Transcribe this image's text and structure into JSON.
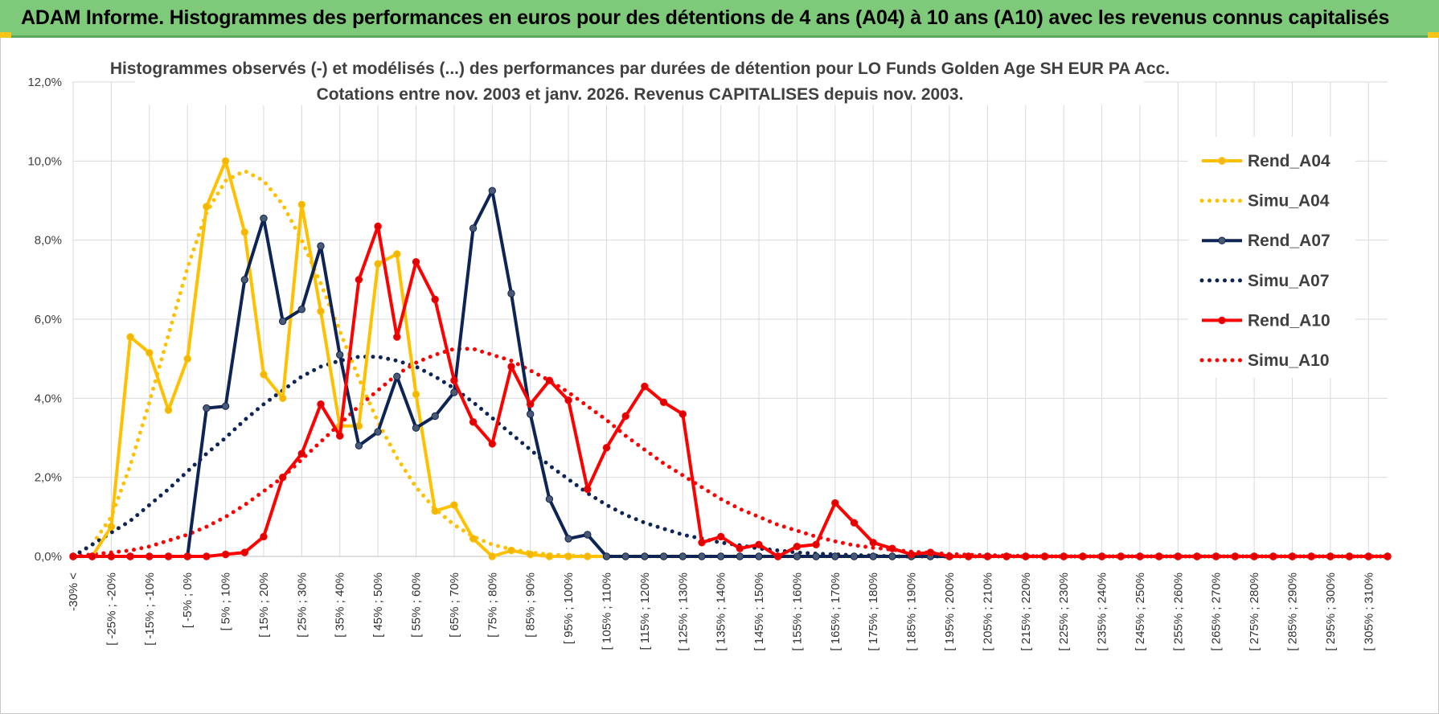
{
  "banner": {
    "title": "ADAM Informe. Histogrammes des performances en euros pour des détentions de 4 ans (A04) à 10 ans (A10) avec les revenus connus capitalisés"
  },
  "colors": {
    "banner_bg": "#7fc97a",
    "a04": "#ffc000",
    "a07": "#0d2455",
    "a10": "#ff0000",
    "marker_a04": "#f2b705",
    "marker_a07": "#4a5a75",
    "marker_a10": "#e00000",
    "grid": "#d9d9d9"
  },
  "chart_data": {
    "type": "line",
    "title": "Histogrammes observés (-) et modélisés (...) des performances par durées de détention pour LO Funds Golden Age SH EUR PA Acc.",
    "subtitle": "Cotations entre nov. 2003 et janv. 2026. Revenus CAPITALISES depuis nov. 2003.",
    "xlabel": "",
    "ylabel": "",
    "ylim": [
      0,
      12
    ],
    "y_ticks": [
      "0,0%",
      "2,0%",
      "4,0%",
      "6,0%",
      "8,0%",
      "10,0%",
      "12,0%"
    ],
    "grid": true,
    "legend_position": "right",
    "x_tick_labels": [
      "-30% <",
      "[ -25% ; -20%",
      "[ -15% ; -10%",
      "[ -5% ; 0%",
      "[ 5% ; 10%",
      "[ 15% ; 20%",
      "[ 25% ; 30%",
      "[ 35% ; 40%",
      "[ 45% ; 50%",
      "[ 55% ; 60%",
      "[ 65% ; 70%",
      "[ 75% ; 80%",
      "[ 85% ; 90%",
      "[ 95% ; 100%",
      "[ 105% ; 110%",
      "[ 115% ; 120%",
      "[ 125% ; 130%",
      "[ 135% ; 140%",
      "[ 145% ; 150%",
      "[ 155% ; 160%",
      "[ 165% ; 170%",
      "[ 175% ; 180%",
      "[ 185% ; 190%",
      "[ 195% ; 200%",
      "[ 205% ; 210%",
      "[ 215% ; 220%",
      "[ 225% ; 230%",
      "[ 235% ; 240%",
      "[ 245% ; 250%",
      "[ 255% ; 260%",
      "[ 265% ; 270%",
      "[ 275% ; 280%",
      "[ 285% ; 290%",
      "[ 295% ; 300%",
      "[ 305% ; 310%"
    ],
    "n_categories": 70,
    "series": [
      {
        "name": "Rend_A04",
        "style": "solid",
        "color": "#ffc000",
        "values": [
          0.0,
          0.0,
          0.75,
          5.55,
          5.15,
          3.7,
          5.0,
          8.85,
          10.0,
          8.2,
          4.6,
          4.0,
          8.9,
          6.2,
          3.3,
          3.3,
          7.4,
          7.65,
          4.1,
          1.15,
          1.3,
          0.45,
          0.0,
          0.15,
          0.05,
          0.0,
          0.0,
          0.0,
          0.0,
          0.0,
          0.0,
          0.0,
          0.0,
          0.0,
          0.0,
          0.0,
          0.0,
          0.0,
          0.0,
          0.0,
          0.0,
          0.0,
          0.0,
          0.0,
          0.0,
          0.0,
          0.0,
          0.0,
          0.0,
          0.0,
          0.0,
          0.0,
          0.0,
          0.0,
          0.0,
          0.0,
          0.0,
          0.0,
          0.0,
          0.0,
          0.0,
          0.0,
          0.0,
          0.0,
          0.0,
          0.0,
          0.0,
          0.0,
          0.0,
          0.0
        ]
      },
      {
        "name": "Simu_A04",
        "style": "dotted",
        "color": "#ffc000",
        "values": [
          0.0,
          0.3,
          1.0,
          2.3,
          3.9,
          5.6,
          7.3,
          8.7,
          9.5,
          9.75,
          9.5,
          8.9,
          8.0,
          6.9,
          5.7,
          4.5,
          3.4,
          2.5,
          1.75,
          1.2,
          0.8,
          0.5,
          0.3,
          0.18,
          0.1,
          0.05,
          0.02,
          0.0,
          0.0,
          0.0,
          0.0,
          0.0,
          0.0,
          0.0,
          0.0,
          0.0,
          0.0,
          0.0,
          0.0,
          0.0,
          0.0,
          0.0,
          0.0,
          0.0,
          0.0,
          0.0,
          0.0,
          0.0,
          0.0,
          0.0,
          0.0,
          0.0,
          0.0,
          0.0,
          0.0,
          0.0,
          0.0,
          0.0,
          0.0,
          0.0,
          0.0,
          0.0,
          0.0,
          0.0,
          0.0,
          0.0,
          0.0,
          0.0,
          0.0,
          0.0
        ]
      },
      {
        "name": "Rend_A07",
        "style": "solid",
        "color": "#0d2455",
        "values": [
          0.0,
          0.0,
          0.0,
          0.0,
          0.0,
          0.0,
          0.0,
          3.75,
          3.8,
          7.0,
          8.55,
          5.95,
          6.25,
          7.85,
          5.1,
          2.8,
          3.15,
          4.55,
          3.25,
          3.55,
          4.15,
          8.3,
          9.25,
          6.65,
          3.6,
          1.45,
          0.45,
          0.55,
          0.0,
          0.0,
          0.0,
          0.0,
          0.0,
          0.0,
          0.0,
          0.0,
          0.0,
          0.0,
          0.0,
          0.0,
          0.0,
          0.0,
          0.0,
          0.0,
          0.0,
          0.0,
          0.0,
          0.0,
          0.0,
          0.0,
          0.0,
          0.0,
          0.0,
          0.0,
          0.0,
          0.0,
          0.0,
          0.0,
          0.0,
          0.0,
          0.0,
          0.0,
          0.0,
          0.0,
          0.0,
          0.0,
          0.0,
          0.0,
          0.0,
          0.0
        ]
      },
      {
        "name": "Simu_A07",
        "style": "dotted",
        "color": "#0d2455",
        "values": [
          0.0,
          0.3,
          0.6,
          0.9,
          1.3,
          1.7,
          2.15,
          2.6,
          3.0,
          3.45,
          3.85,
          4.2,
          4.55,
          4.8,
          4.95,
          5.05,
          5.05,
          4.95,
          4.8,
          4.55,
          4.25,
          3.9,
          3.5,
          3.1,
          2.7,
          2.3,
          1.95,
          1.6,
          1.3,
          1.05,
          0.85,
          0.7,
          0.55,
          0.45,
          0.35,
          0.28,
          0.2,
          0.15,
          0.1,
          0.07,
          0.05,
          0.03,
          0.02,
          0.0,
          0.0,
          0.0,
          0.0,
          0.0,
          0.0,
          0.0,
          0.0,
          0.0,
          0.0,
          0.0,
          0.0,
          0.0,
          0.0,
          0.0,
          0.0,
          0.0,
          0.0,
          0.0,
          0.0,
          0.0,
          0.0,
          0.0,
          0.0,
          0.0,
          0.0,
          0.0
        ]
      },
      {
        "name": "Rend_A10",
        "style": "solid",
        "color": "#ff0000",
        "values": [
          0.0,
          0.0,
          0.0,
          0.0,
          0.0,
          0.0,
          0.0,
          0.0,
          0.05,
          0.1,
          0.5,
          2.0,
          2.6,
          3.85,
          3.05,
          7.0,
          8.35,
          5.55,
          7.45,
          6.5,
          4.45,
          3.4,
          2.85,
          4.8,
          3.85,
          4.45,
          3.95,
          1.7,
          2.75,
          3.55,
          4.3,
          3.9,
          3.6,
          0.35,
          0.5,
          0.2,
          0.3,
          0.0,
          0.25,
          0.3,
          1.35,
          0.85,
          0.35,
          0.2,
          0.05,
          0.1,
          0.0,
          0.0,
          0.0,
          0.0,
          0.0,
          0.0,
          0.0,
          0.0,
          0.0,
          0.0,
          0.0,
          0.0,
          0.0,
          0.0,
          0.0,
          0.0,
          0.0,
          0.0,
          0.0,
          0.0,
          0.0,
          0.0,
          0.0,
          0.0
        ]
      },
      {
        "name": "Simu_A10",
        "style": "dotted",
        "color": "#ff0000",
        "values": [
          0.0,
          0.05,
          0.1,
          0.15,
          0.25,
          0.4,
          0.55,
          0.75,
          1.0,
          1.3,
          1.65,
          2.0,
          2.45,
          2.9,
          3.35,
          3.8,
          4.2,
          4.6,
          4.9,
          5.1,
          5.25,
          5.25,
          5.1,
          4.95,
          4.7,
          4.45,
          4.15,
          3.8,
          3.45,
          3.05,
          2.7,
          2.35,
          2.05,
          1.75,
          1.45,
          1.2,
          1.0,
          0.8,
          0.65,
          0.5,
          0.38,
          0.28,
          0.22,
          0.17,
          0.12,
          0.09,
          0.06,
          0.04,
          0.03,
          0.02,
          0.01,
          0.0,
          0.0,
          0.0,
          0.0,
          0.0,
          0.0,
          0.0,
          0.0,
          0.0,
          0.0,
          0.0,
          0.0,
          0.0,
          0.0,
          0.0,
          0.0,
          0.0,
          0.0,
          0.0
        ]
      }
    ]
  }
}
